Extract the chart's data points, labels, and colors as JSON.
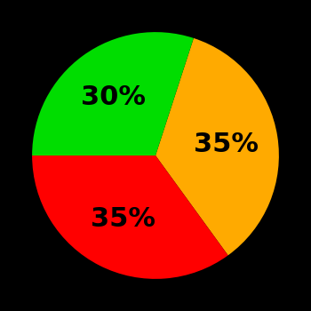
{
  "slices": [
    35,
    35,
    30
  ],
  "colors": [
    "#ffaa00",
    "#ff0000",
    "#00dd00"
  ],
  "labels": [
    "35%",
    "35%",
    "30%"
  ],
  "background_color": "#000000",
  "label_fontsize": 22,
  "label_fontweight": "bold",
  "label_color": "#000000",
  "startangle": 72,
  "figsize": [
    3.5,
    3.5
  ],
  "dpi": 100
}
